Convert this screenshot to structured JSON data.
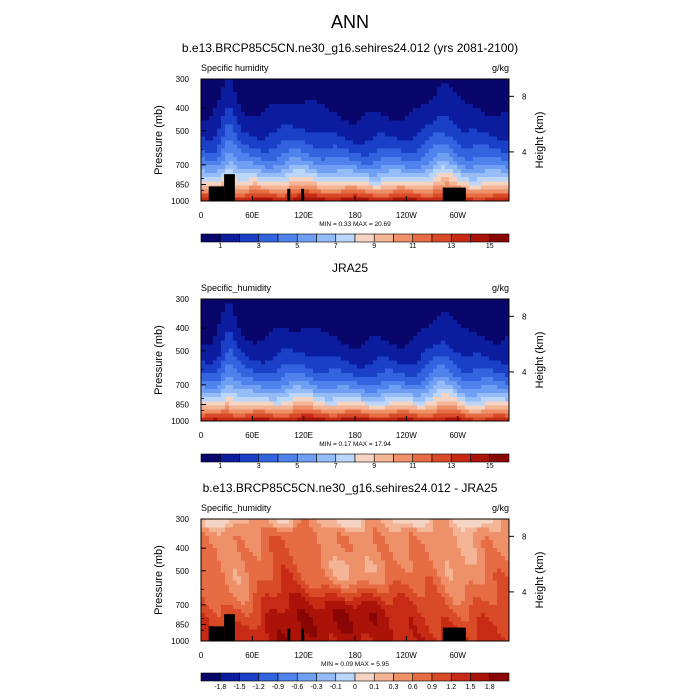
{
  "figure": {
    "title": "ANN"
  },
  "chart_data": [
    {
      "type": "heatmap",
      "title": "b.e13.BRCP85C5CN.ne30_g16.sehires24.012 (yrs 2081-2100)",
      "left_label": "Specific humidity",
      "units": "g/kg",
      "ylabel": "Pressure (mb)",
      "ylabel_right": "Height (km)",
      "xticks": [
        "0",
        "60E",
        "120E",
        "180",
        "120W",
        "60W"
      ],
      "yticks": [
        "300",
        "400",
        "500",
        "700",
        "850",
        "1000"
      ],
      "right_ticks": [
        "8",
        "4"
      ],
      "xlim": [
        0,
        360
      ],
      "ylim": [
        1000,
        300
      ],
      "stats": "MIN = 0.33   MAX = 20.69",
      "colorbar_labels": [
        "1",
        "3",
        "5",
        "7",
        "9",
        "11",
        "13",
        "15"
      ],
      "colorbar_levels": 16,
      "diverging": false,
      "min": 0.33,
      "max": 20.69
    },
    {
      "type": "heatmap",
      "title": "JRA25",
      "left_label": "Specific_humidity",
      "units": "g/kg",
      "ylabel": "Pressure (mb)",
      "ylabel_right": "Height (km)",
      "xticks": [
        "0",
        "60E",
        "120E",
        "180",
        "120W",
        "60W"
      ],
      "yticks": [
        "300",
        "400",
        "500",
        "700",
        "850",
        "1000"
      ],
      "right_ticks": [
        "8",
        "4"
      ],
      "xlim": [
        0,
        360
      ],
      "ylim": [
        1000,
        300
      ],
      "stats": "MIN = 0.17   MAX = 17.94",
      "colorbar_labels": [
        "1",
        "3",
        "5",
        "7",
        "9",
        "11",
        "13",
        "15"
      ],
      "colorbar_levels": 16,
      "diverging": false,
      "min": 0.17,
      "max": 17.94
    },
    {
      "type": "heatmap",
      "title": "b.e13.BRCP85C5CN.ne30_g16.sehires24.012 - JRA25",
      "left_label": "Specific_humidity",
      "units": "g/kg",
      "ylabel": "Pressure (mb)",
      "ylabel_right": "Height (km)",
      "xticks": [
        "0",
        "60E",
        "120E",
        "180",
        "120W",
        "60W"
      ],
      "yticks": [
        "300",
        "400",
        "500",
        "700",
        "850",
        "1000"
      ],
      "right_ticks": [
        "8",
        "4"
      ],
      "xlim": [
        0,
        360
      ],
      "ylim": [
        1000,
        300
      ],
      "stats": "MIN = 0.09   MAX = 5.95",
      "colorbar_labels": [
        "-1.8",
        "-1.5",
        "-1.2",
        "-0.9",
        "-0.6",
        "-0.3",
        "-0.1",
        "0",
        "0.1",
        "0.3",
        "0.6",
        "0.9",
        "1.2",
        "1.5",
        "1.8"
      ],
      "colorbar_levels": 16,
      "diverging": true,
      "min": 0.09,
      "max": 5.95
    }
  ],
  "colors": {
    "scale16": [
      "#08066b",
      "#0b1d9e",
      "#1a40c8",
      "#3463e0",
      "#4f82ec",
      "#6f9ff2",
      "#95bcf6",
      "#bcd6f9",
      "#f6d4c4",
      "#f4b496",
      "#ee9068",
      "#e66c43",
      "#d94a27",
      "#c72b16",
      "#ab1309",
      "#8a0605"
    ],
    "mask": "#000000"
  }
}
